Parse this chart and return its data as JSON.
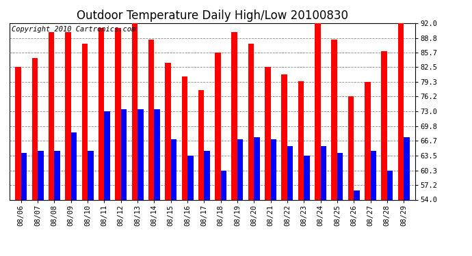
{
  "title": "Outdoor Temperature Daily High/Low 20100830",
  "copyright": "Copyright 2010 Cartronics.com",
  "dates": [
    "08/06",
    "08/07",
    "08/08",
    "08/09",
    "08/10",
    "08/11",
    "08/12",
    "08/13",
    "08/14",
    "08/15",
    "08/16",
    "08/17",
    "08/18",
    "08/19",
    "08/20",
    "08/21",
    "08/22",
    "08/23",
    "08/24",
    "08/25",
    "08/26",
    "08/27",
    "08/28",
    "08/29"
  ],
  "highs": [
    82.5,
    84.5,
    90.0,
    90.0,
    87.5,
    91.0,
    91.0,
    92.0,
    88.5,
    83.5,
    80.5,
    77.5,
    85.7,
    90.0,
    87.5,
    82.5,
    81.0,
    79.5,
    92.0,
    88.5,
    76.2,
    79.3,
    86.0,
    92.0
  ],
  "lows": [
    64.0,
    64.5,
    64.5,
    68.5,
    64.5,
    73.0,
    73.5,
    73.5,
    73.5,
    67.0,
    63.5,
    64.5,
    60.3,
    67.0,
    67.5,
    67.0,
    65.5,
    63.5,
    65.5,
    64.0,
    56.0,
    64.5,
    60.3,
    67.5
  ],
  "ylim": [
    54.0,
    92.0
  ],
  "yticks": [
    54.0,
    57.2,
    60.3,
    63.5,
    66.7,
    69.8,
    73.0,
    76.2,
    79.3,
    82.5,
    85.7,
    88.8,
    92.0
  ],
  "high_color": "#ff0000",
  "low_color": "#0000ff",
  "bg_color": "#ffffff",
  "grid_color": "#888888",
  "title_fontsize": 12,
  "copyright_fontsize": 7.5,
  "tick_fontsize": 7.5,
  "bar_width": 0.35
}
